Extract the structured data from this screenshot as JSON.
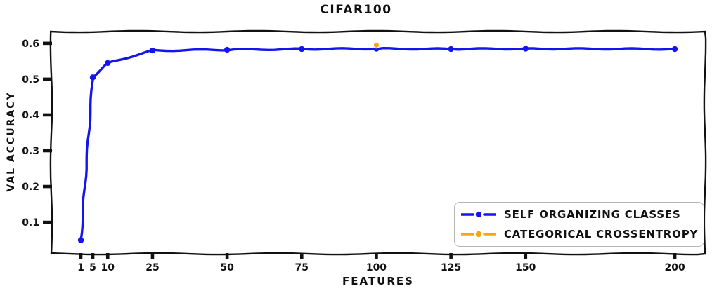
{
  "chart_data": {
    "type": "line",
    "title": "CIFAR100",
    "xlabel": "FEATURES",
    "ylabel": "VAL ACCURACY",
    "style": "xkcd-hand-drawn",
    "grid": false,
    "legend_position": "lower right",
    "xlim": [
      -8.9,
      210.1
    ],
    "ylim": [
      0.012,
      0.633
    ],
    "x_ticks": [
      1,
      5,
      10,
      25,
      50,
      75,
      100,
      125,
      150,
      200
    ],
    "y_ticks": [
      0.1,
      0.2,
      0.3,
      0.4,
      0.5,
      0.6
    ],
    "axis_color": "#111111",
    "series": [
      {
        "name": "SELF ORGANIZING CLASSES",
        "color": "#1414ee",
        "marker": "circle",
        "x": [
          1,
          5,
          10,
          25,
          50,
          75,
          100,
          125,
          150,
          200
        ],
        "y": [
          0.05,
          0.505,
          0.545,
          0.58,
          0.582,
          0.584,
          0.585,
          0.584,
          0.585,
          0.584
        ]
      },
      {
        "name": "CATEGORICAL CROSSENTROPY",
        "color": "#ffa508",
        "marker": "circle",
        "marker_edge": "#ffffff",
        "x": [
          100
        ],
        "y": [
          0.595
        ]
      }
    ]
  }
}
